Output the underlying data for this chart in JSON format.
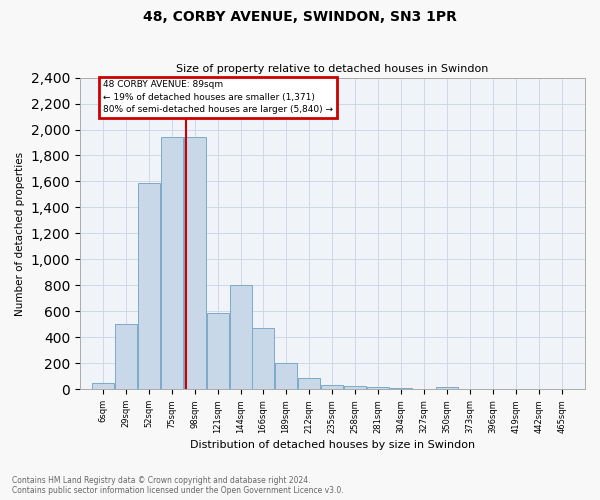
{
  "title": "48, CORBY AVENUE, SWINDON, SN3 1PR",
  "subtitle": "Size of property relative to detached houses in Swindon",
  "xlabel": "Distribution of detached houses by size in Swindon",
  "ylabel": "Number of detached properties",
  "footnote1": "Contains HM Land Registry data © Crown copyright and database right 2024.",
  "footnote2": "Contains public sector information licensed under the Open Government Licence v3.0.",
  "bar_color": "#c8d8e8",
  "bar_edge_color": "#7aaac8",
  "annotation_box_color": "#cc0000",
  "vline_color": "#cc0000",
  "grid_color": "#d0d8e8",
  "background_color": "#f0f4f8",
  "property_size": 89,
  "annotation_line1": "48 CORBY AVENUE: 89sqm",
  "annotation_line2": "← 19% of detached houses are smaller (1,371)",
  "annotation_line3": "80% of semi-detached houses are larger (5,840) →",
  "bins": [
    6,
    29,
    52,
    75,
    98,
    121,
    144,
    166,
    189,
    212,
    235,
    258,
    281,
    304,
    327,
    350,
    373,
    396,
    419,
    442,
    465
  ],
  "counts": [
    50,
    500,
    1590,
    1940,
    1940,
    590,
    800,
    470,
    200,
    90,
    35,
    25,
    15,
    8,
    5,
    20,
    3,
    3,
    3,
    3
  ],
  "ylim": [
    0,
    2400
  ],
  "yticks": [
    0,
    200,
    400,
    600,
    800,
    1000,
    1200,
    1400,
    1600,
    1800,
    2000,
    2200,
    2400
  ]
}
